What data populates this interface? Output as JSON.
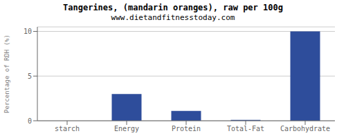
{
  "chart_data": {
    "type": "bar",
    "title": "Tangerines, (mandarin oranges), raw per 100g",
    "subtitle": "www.dietandfitnesstoday.com",
    "categories": [
      "starch",
      "Energy",
      "Protein",
      "Total-Fat",
      "Carbohydrate"
    ],
    "values": [
      0,
      3.0,
      1.1,
      0.1,
      10.0
    ],
    "color": "#2e4d9b",
    "ylabel": "Percentage of RDH (%)",
    "ylim": [
      0,
      10.5
    ],
    "yticks": [
      0,
      5,
      10
    ],
    "grid": true
  }
}
